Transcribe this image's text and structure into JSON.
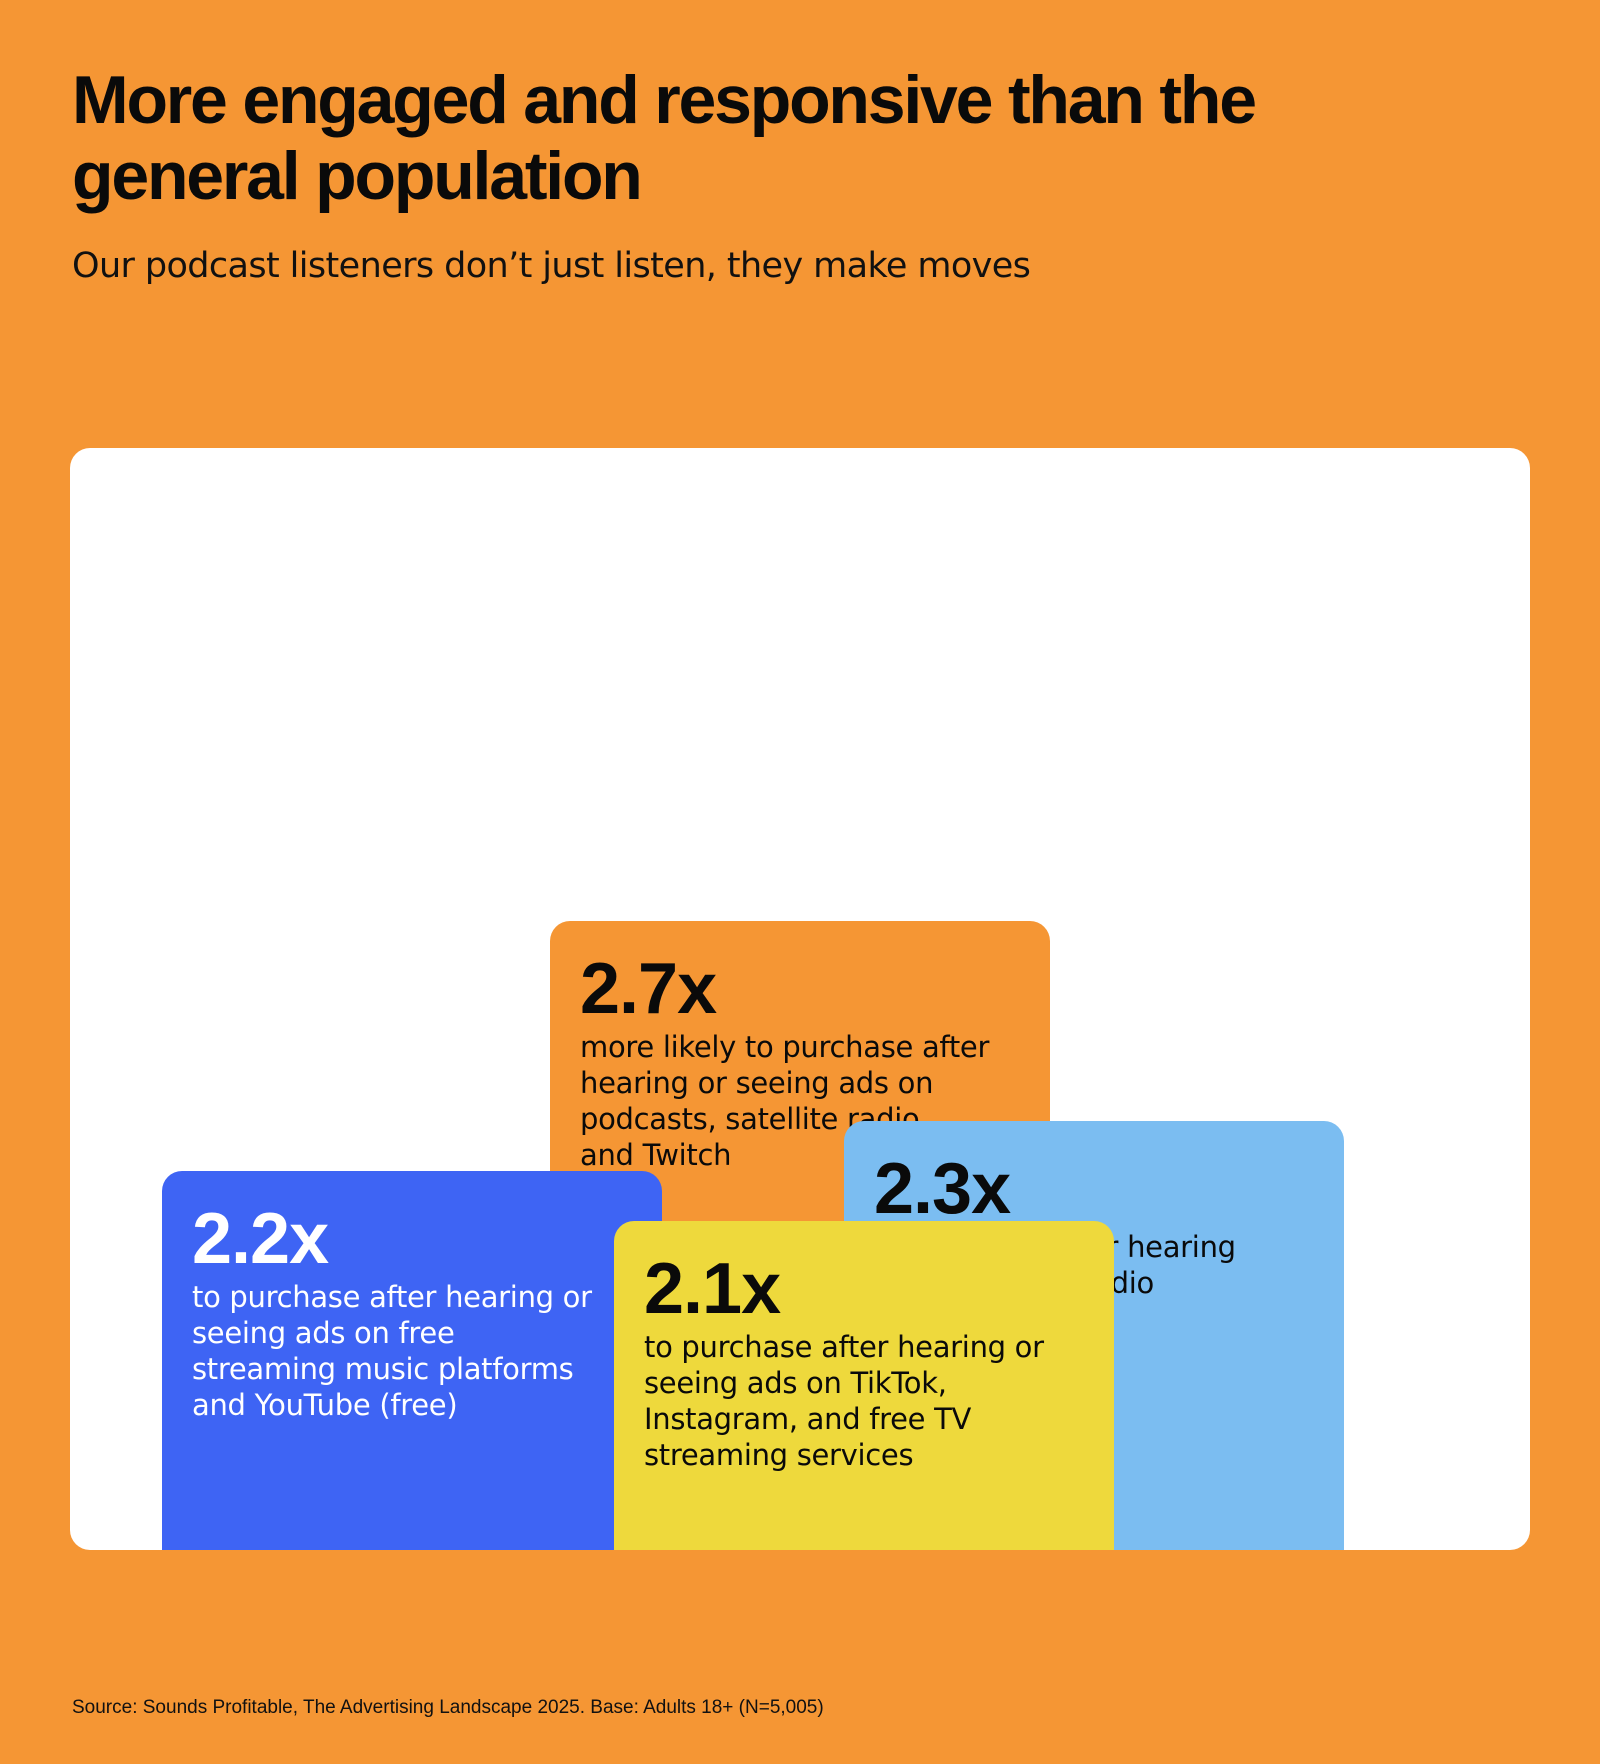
{
  "header": {
    "title": "More engaged and responsive than the general population",
    "subtitle": "Our podcast listeners don’t just listen, they make moves"
  },
  "colors": {
    "background": "#F59634",
    "panel": "#FFFFFF",
    "orange": "#F59634",
    "light_blue": "#7BBDF1",
    "blue": "#3E64F4",
    "yellow": "#EED93C"
  },
  "chart_data": {
    "type": "bar",
    "unit": "x",
    "items": [
      {
        "value": 2.7,
        "value_label": "2.7x",
        "description": "more likely to purchase after hearing or seeing ads on podcasts, satellite radio, and Twitch",
        "color": "#F59634",
        "text_color": "#0a0a0a"
      },
      {
        "value": 2.3,
        "value_label": "2.3x",
        "description": "to purchase after hearing ads on AM/FM radio",
        "color": "#7BBDF1",
        "text_color": "#0a0a0a"
      },
      {
        "value": 2.2,
        "value_label": "2.2x",
        "description": "to purchase after hearing or seeing ads on free streaming music platforms and YouTube (free)",
        "color": "#3E64F4",
        "text_color": "#ffffff"
      },
      {
        "value": 2.1,
        "value_label": "2.1x",
        "description": "to purchase after hearing or seeing ads on TikTok, Instagram, and free TV streaming services",
        "color": "#EED93C",
        "text_color": "#0a0a0a"
      }
    ]
  },
  "footer": {
    "source": "Source: Sounds Profitable, The Advertising Landscape 2025. Base: Adults 18+ (N=5,005)"
  }
}
